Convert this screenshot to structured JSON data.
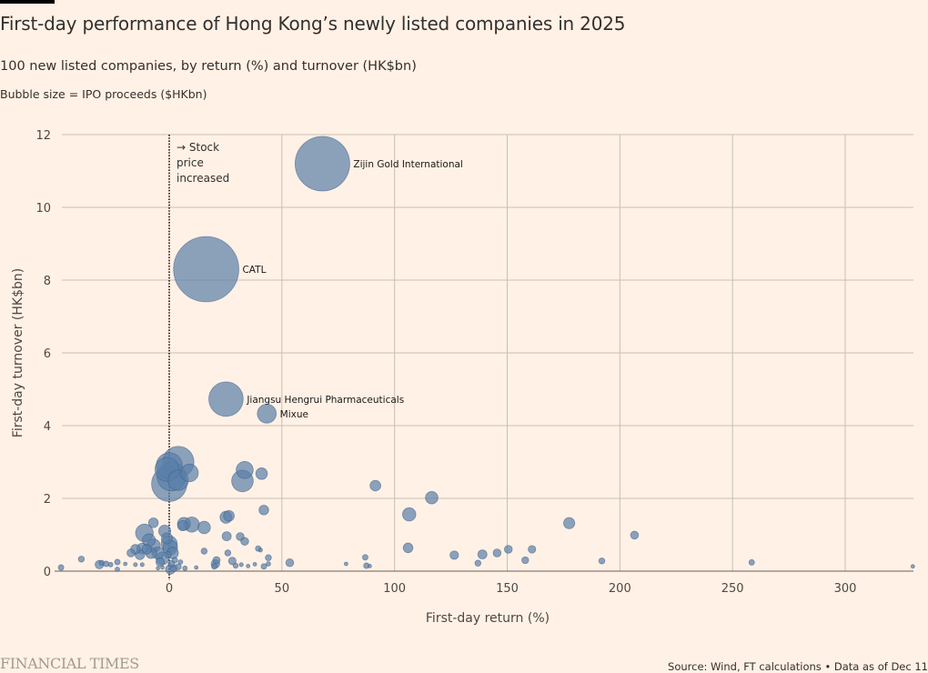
{
  "header": {
    "title": "First-day performance of Hong Kong’s newly listed companies in 2025",
    "subtitle": "100 new listed companies, by return (%) and turnover (HK$bn)",
    "size_note": "Bubble size = IPO proceeds ($HKbn)"
  },
  "footer": {
    "logo": "FINANCIAL TIMES",
    "source": "Source: Wind, FT calculations • Data as of Dec 11"
  },
  "colors": {
    "background": "#fff1e5",
    "bubble_fill": "#5a7fa8",
    "bubble_stroke": "#3d5f8a",
    "grid": "#c9bfb5",
    "axis": "#66605c"
  },
  "chart_data": {
    "type": "scatter",
    "title": "First-day performance of Hong Kong’s newly listed companies in 2025",
    "subtitle": "100 new listed companies, by return (%) and turnover (HK$bn)",
    "xlabel": "First-day return (%)",
    "ylabel": "First-day turnover (HK$bn)",
    "size_label": "Bubble size = IPO proceeds ($HKbn)",
    "xlim": [
      -51,
      332
    ],
    "ylim": [
      0,
      12
    ],
    "xticks": [
      0,
      50,
      100,
      150,
      200,
      250,
      300
    ],
    "yticks": [
      0,
      2,
      4,
      6,
      8,
      10,
      12
    ],
    "grid": true,
    "reference_line": {
      "x": 0,
      "style": "dotted",
      "annotation": [
        "→ Stock",
        "price",
        "increased"
      ]
    },
    "labels": [
      {
        "name": "Zijin Gold International",
        "x": 68,
        "y": 11.2
      },
      {
        "name": "CATL",
        "x": 16.4,
        "y": 8.3
      },
      {
        "name": "Jiangsu Hengrui Pharmaceuticals",
        "x": 25.2,
        "y": 4.73
      },
      {
        "name": "Mixue",
        "x": 43.3,
        "y": 4.33
      }
    ],
    "points": [
      {
        "x": 68,
        "y": 11.2,
        "size": 28.7
      },
      {
        "x": 16.4,
        "y": 8.3,
        "size": 41.0
      },
      {
        "x": 25.2,
        "y": 4.73,
        "size": 11.4
      },
      {
        "x": 43.3,
        "y": 4.33,
        "size": 3.45
      },
      {
        "x": 4,
        "y": 3.0,
        "size": 9.5
      },
      {
        "x": 0,
        "y": 2.9,
        "size": 6.5
      },
      {
        "x": -1,
        "y": 2.8,
        "size": 5.5
      },
      {
        "x": 1,
        "y": 2.6,
        "size": 8.0
      },
      {
        "x": 9,
        "y": 2.7,
        "size": 3.0
      },
      {
        "x": 0,
        "y": 2.4,
        "size": 12.0
      },
      {
        "x": 4,
        "y": 2.5,
        "size": 4.0
      },
      {
        "x": 33.5,
        "y": 2.78,
        "size": 2.8
      },
      {
        "x": 32.5,
        "y": 2.48,
        "size": 4.5
      },
      {
        "x": 41,
        "y": 2.68,
        "size": 1.3
      },
      {
        "x": 42,
        "y": 1.68,
        "size": 0.9
      },
      {
        "x": 91.5,
        "y": 2.35,
        "size": 1.1
      },
      {
        "x": 116.5,
        "y": 2.02,
        "size": 1.5
      },
      {
        "x": 106.5,
        "y": 1.56,
        "size": 1.7
      },
      {
        "x": 177.5,
        "y": 1.32,
        "size": 1.2
      },
      {
        "x": 206.5,
        "y": 0.99,
        "size": 0.6
      },
      {
        "x": 106,
        "y": 0.64,
        "size": 0.9
      },
      {
        "x": 126.5,
        "y": 0.44,
        "size": 0.7
      },
      {
        "x": 139,
        "y": 0.46,
        "size": 0.8
      },
      {
        "x": 145.5,
        "y": 0.5,
        "size": 0.6
      },
      {
        "x": 150.5,
        "y": 0.6,
        "size": 0.6
      },
      {
        "x": 161,
        "y": 0.6,
        "size": 0.55
      },
      {
        "x": 158,
        "y": 0.3,
        "size": 0.45
      },
      {
        "x": 137,
        "y": 0.22,
        "size": 0.35
      },
      {
        "x": 192,
        "y": 0.28,
        "size": 0.35
      },
      {
        "x": 258.5,
        "y": 0.24,
        "size": 0.3
      },
      {
        "x": 330,
        "y": 0.13,
        "size": 0.08
      },
      {
        "x": 87,
        "y": 0.38,
        "size": 0.3
      },
      {
        "x": 87.5,
        "y": 0.15,
        "size": 0.3
      },
      {
        "x": 89,
        "y": 0.14,
        "size": 0.08
      },
      {
        "x": 78.5,
        "y": 0.2,
        "size": 0.1
      },
      {
        "x": 53.5,
        "y": 0.23,
        "size": 0.6
      },
      {
        "x": 44,
        "y": 0.37,
        "size": 0.35
      },
      {
        "x": 44,
        "y": 0.2,
        "size": 0.2
      },
      {
        "x": 42,
        "y": 0.13,
        "size": 0.3
      },
      {
        "x": 39.5,
        "y": 0.62,
        "size": 0.3
      },
      {
        "x": 40.5,
        "y": 0.58,
        "size": 0.15
      },
      {
        "x": 38,
        "y": 0.19,
        "size": 0.1
      },
      {
        "x": 35,
        "y": 0.14,
        "size": 0.1
      },
      {
        "x": 32,
        "y": 0.18,
        "size": 0.15
      },
      {
        "x": 31.5,
        "y": 0.95,
        "size": 0.6
      },
      {
        "x": 33.5,
        "y": 0.82,
        "size": 0.6
      },
      {
        "x": 25.2,
        "y": 1.48,
        "size": 1.4
      },
      {
        "x": 26.5,
        "y": 1.52,
        "size": 1.1
      },
      {
        "x": 25.5,
        "y": 0.96,
        "size": 0.8
      },
      {
        "x": 26,
        "y": 0.5,
        "size": 0.35
      },
      {
        "x": 28,
        "y": 0.28,
        "size": 0.55
      },
      {
        "x": 29.5,
        "y": 0.15,
        "size": 0.25
      },
      {
        "x": 20.5,
        "y": 0.2,
        "size": 0.7
      },
      {
        "x": 21,
        "y": 0.3,
        "size": 0.5
      },
      {
        "x": 20,
        "y": 0.13,
        "size": 0.3
      },
      {
        "x": 15.5,
        "y": 0.55,
        "size": 0.35
      },
      {
        "x": 15.5,
        "y": 1.2,
        "size": 1.5
      },
      {
        "x": 10,
        "y": 1.28,
        "size": 2.2
      },
      {
        "x": 6.5,
        "y": 1.3,
        "size": 1.6
      },
      {
        "x": 6,
        "y": 1.25,
        "size": 1.0
      },
      {
        "x": 7,
        "y": 0.08,
        "size": 0.2
      },
      {
        "x": 4,
        "y": 0.12,
        "size": 0.35
      },
      {
        "x": 2,
        "y": 0.08,
        "size": 0.5
      },
      {
        "x": 0.5,
        "y": 0.05,
        "size": 0.9
      },
      {
        "x": 1,
        "y": 0.2,
        "size": 0.4
      },
      {
        "x": -0.5,
        "y": 0.45,
        "size": 0.4
      },
      {
        "x": 0,
        "y": 0.75,
        "size": 2.5
      },
      {
        "x": 0.5,
        "y": 0.65,
        "size": 2.0
      },
      {
        "x": 1.5,
        "y": 0.5,
        "size": 1.3
      },
      {
        "x": -1,
        "y": 0.9,
        "size": 1.2
      },
      {
        "x": -3,
        "y": 0.35,
        "size": 1.6
      },
      {
        "x": -4,
        "y": 0.25,
        "size": 0.7
      },
      {
        "x": -5,
        "y": 0.5,
        "size": 1.4
      },
      {
        "x": -7,
        "y": 0.7,
        "size": 1.8
      },
      {
        "x": -8,
        "y": 0.5,
        "size": 1.2
      },
      {
        "x": -9,
        "y": 0.85,
        "size": 1.6
      },
      {
        "x": -10,
        "y": 0.6,
        "size": 0.9
      },
      {
        "x": -11,
        "y": 1.05,
        "size": 3.0
      },
      {
        "x": -12,
        "y": 0.62,
        "size": 1.1
      },
      {
        "x": -13,
        "y": 0.45,
        "size": 0.9
      },
      {
        "x": -15,
        "y": 0.6,
        "size": 0.9
      },
      {
        "x": -17,
        "y": 0.5,
        "size": 0.6
      },
      {
        "x": -7,
        "y": 1.33,
        "size": 0.9
      },
      {
        "x": -2,
        "y": 1.1,
        "size": 1.4
      },
      {
        "x": -12,
        "y": 0.18,
        "size": 0.15
      },
      {
        "x": -15,
        "y": 0.18,
        "size": 0.15
      },
      {
        "x": -19.5,
        "y": 0.2,
        "size": 0.12
      },
      {
        "x": -23,
        "y": 0.25,
        "size": 0.3
      },
      {
        "x": -23,
        "y": 0.05,
        "size": 0.2
      },
      {
        "x": -26,
        "y": 0.18,
        "size": 0.2
      },
      {
        "x": -28,
        "y": 0.2,
        "size": 0.3
      },
      {
        "x": -30,
        "y": 0.23,
        "size": 0.25
      },
      {
        "x": -31,
        "y": 0.18,
        "size": 0.7
      },
      {
        "x": -39,
        "y": 0.33,
        "size": 0.35
      },
      {
        "x": -48,
        "y": 0.1,
        "size": 0.3
      },
      {
        "x": -5,
        "y": 0.08,
        "size": 0.1
      },
      {
        "x": -3,
        "y": 0.1,
        "size": 0.1
      },
      {
        "x": 12,
        "y": 0.1,
        "size": 0.1
      },
      {
        "x": 5,
        "y": 0.25,
        "size": 0.2
      },
      {
        "x": 2.5,
        "y": 0.3,
        "size": 0.3
      }
    ]
  }
}
